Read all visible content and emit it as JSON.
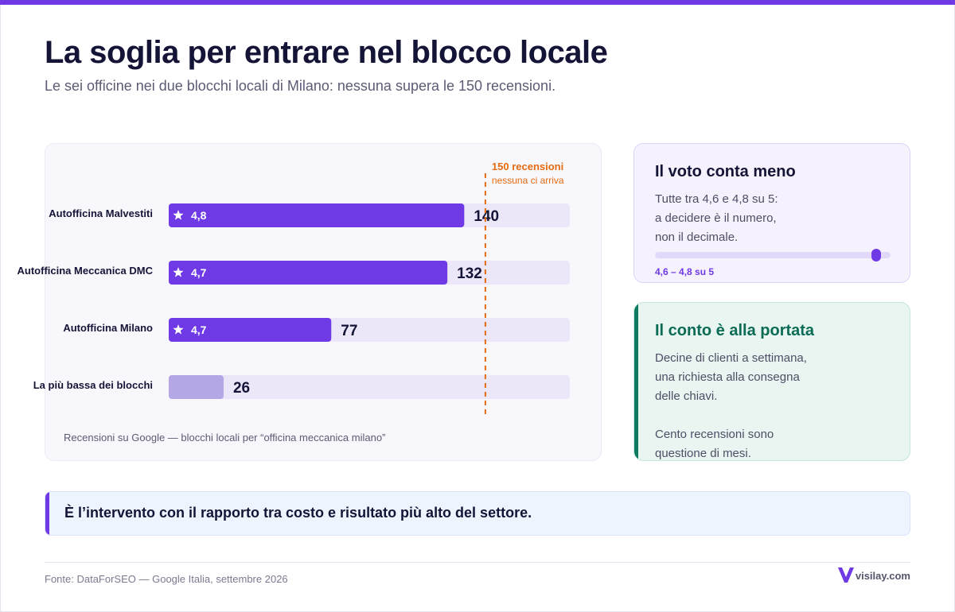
{
  "header": {
    "title": "La soglia per entrare nel blocco locale",
    "subtitle": "Le sei officine nei due blocchi locali di Milano: nessuna supera le 150 recensioni."
  },
  "chart_data": {
    "type": "bar",
    "orientation": "horizontal",
    "categories": [
      "Autofficina Malvestiti",
      "Autofficina Meccanica DMC",
      "Autofficina Milano",
      "La più bassa dei blocchi"
    ],
    "values": [
      140,
      132,
      77,
      26
    ],
    "ratings": [
      "4,8",
      "4,7",
      "4,7",
      ""
    ],
    "xlim": [
      0,
      190
    ],
    "threshold": {
      "value": 150,
      "label": "150 recensioni",
      "sublabel": "nessuna ci arriva"
    },
    "note": "Recensioni su Google — blocchi locali per “officina meccanica milano”",
    "colors": {
      "bar": "#6f3ae6",
      "bar_low": "#b5a6e6",
      "track": "#ebe7f8",
      "threshold": "#e56b12"
    }
  },
  "card_rating": {
    "title": "Il voto conta meno",
    "body": [
      "Tutte tra 4,6 e 4,8 su 5:",
      "a decidere è il numero,",
      "non il decimale."
    ],
    "range": {
      "min": 4.6,
      "max": 4.8,
      "scale_max": 5
    },
    "range_label": "4,6 – 4,8 su 5"
  },
  "card_cost": {
    "title": "Il conto è alla portata",
    "paragraphs": [
      [
        "Decine di clienti a settimana,",
        "una richiesta alla consegna",
        "delle chiavi."
      ],
      [
        "Cento recensioni sono",
        "questione di mesi."
      ]
    ]
  },
  "callout": {
    "text": "È l’intervento con il rapporto tra costo e risultato più alto del settore."
  },
  "footer": {
    "source": "Fonte: DataForSEO — Google Italia, settembre 2026",
    "brand": "visilay.com",
    "brand_icon": "v-logo-icon"
  }
}
